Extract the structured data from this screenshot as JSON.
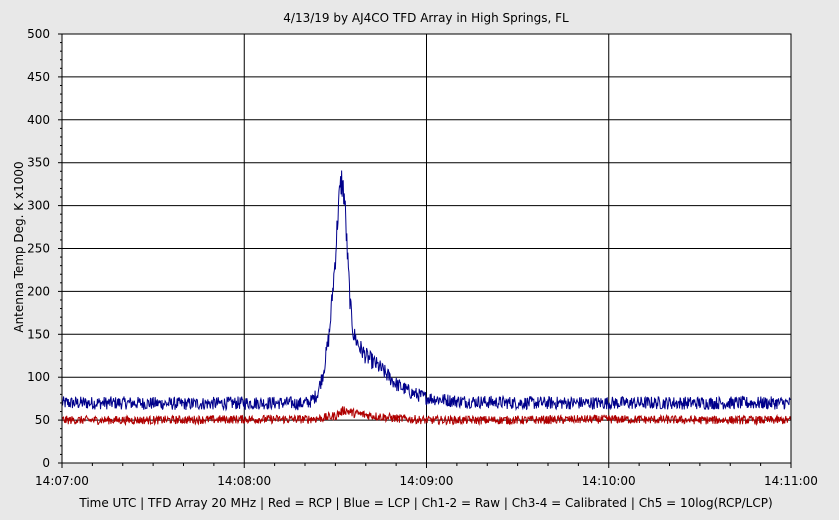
{
  "chart_data": {
    "type": "line",
    "title": "4/13/19  by  AJ4CO TFD Array  in  High Springs, FL",
    "ylabel": "Antenna Temp Deg. K x1000",
    "footer": "Time UTC | TFD Array 20 MHz | Red = RCP | Blue = LCP | Ch1-2 = Raw | Ch3-4 = Calibrated | Ch5 = 10log(RCP/LCP)",
    "x_unit": "time UTC",
    "xlim": [
      "14:07:00",
      "14:11:00"
    ],
    "x_ticks": [
      "14:07:00",
      "14:08:00",
      "14:09:00",
      "14:10:00",
      "14:11:00"
    ],
    "ylim": [
      0,
      500
    ],
    "y_ticks": [
      0,
      50,
      100,
      150,
      200,
      250,
      300,
      350,
      400,
      450,
      500
    ],
    "grid": true,
    "colors": {
      "background": "#ffffff",
      "frame": "#e8e8e8",
      "grid": "#000000"
    },
    "series": [
      {
        "color": "#00008b",
        "x": [
          "14:07:00",
          "14:07:20",
          "14:07:40",
          "14:08:00",
          "14:08:10",
          "14:08:15",
          "14:08:18",
          "14:08:20",
          "14:08:22",
          "14:08:24",
          "14:08:26",
          "14:08:28",
          "14:08:30",
          "14:08:31",
          "14:08:32",
          "14:08:33",
          "14:08:34",
          "14:08:35",
          "14:08:36",
          "14:08:38",
          "14:08:40",
          "14:08:45",
          "14:08:50",
          "14:08:55",
          "14:09:00",
          "14:09:10",
          "14:09:30",
          "14:10:00",
          "14:10:30",
          "14:11:00"
        ],
        "values": [
          70,
          70,
          69,
          70,
          70,
          70,
          69,
          70,
          72,
          80,
          105,
          150,
          240,
          300,
          330,
          310,
          240,
          180,
          150,
          135,
          125,
          110,
          92,
          82,
          76,
          72,
          70,
          70,
          70,
          70
        ]
      },
      {
        "color": "#b00000",
        "x": [
          "14:07:00",
          "14:07:30",
          "14:08:00",
          "14:08:20",
          "14:08:25",
          "14:08:30",
          "14:08:33",
          "14:08:36",
          "14:08:40",
          "14:08:45",
          "14:08:50",
          "14:08:55",
          "14:09:00",
          "14:09:30",
          "14:10:00",
          "14:10:30",
          "14:11:00"
        ],
        "values": [
          50,
          50,
          51,
          51,
          52,
          55,
          62,
          58,
          56,
          54,
          52,
          51,
          50,
          50,
          51,
          50,
          50
        ]
      }
    ]
  }
}
